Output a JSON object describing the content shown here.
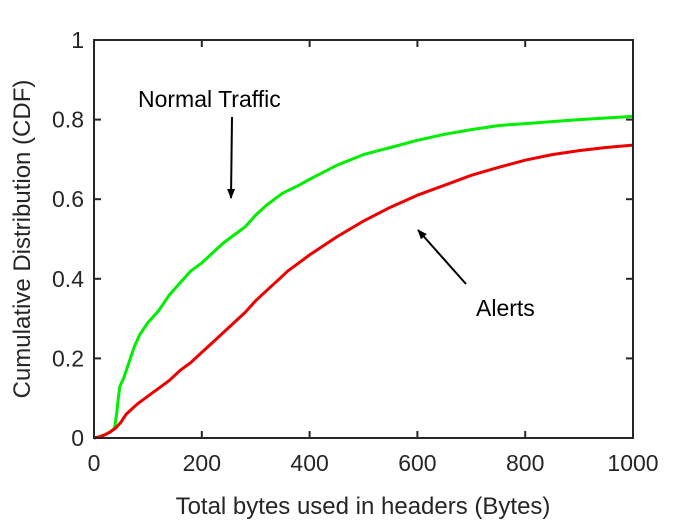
{
  "chart_data": {
    "type": "line",
    "title": "",
    "xlabel": "Total bytes used in headers (Bytes)",
    "ylabel": "Cumulative Distribution (CDF)",
    "xlim": [
      0,
      1000
    ],
    "ylim": [
      0,
      1
    ],
    "xticks": [
      "0",
      "200",
      "400",
      "600",
      "800",
      "1000"
    ],
    "yticks": [
      "0",
      "0.2",
      "0.4",
      "0.6",
      "0.8",
      "1"
    ],
    "grid": false,
    "series": [
      {
        "name": "Normal Traffic",
        "color": "#00ee00",
        "x": [
          0,
          10,
          20,
          30,
          38,
          42,
          45,
          48,
          55,
          65,
          75,
          85,
          100,
          120,
          140,
          160,
          180,
          200,
          220,
          240,
          260,
          280,
          300,
          320,
          350,
          380,
          400,
          450,
          500,
          550,
          600,
          650,
          700,
          750,
          800,
          850,
          900,
          950,
          1000
        ],
        "values": [
          0,
          0.003,
          0.008,
          0.015,
          0.025,
          0.06,
          0.1,
          0.13,
          0.15,
          0.19,
          0.23,
          0.26,
          0.29,
          0.32,
          0.36,
          0.39,
          0.42,
          0.44,
          0.465,
          0.49,
          0.51,
          0.53,
          0.56,
          0.585,
          0.615,
          0.635,
          0.65,
          0.685,
          0.712,
          0.73,
          0.748,
          0.763,
          0.775,
          0.785,
          0.79,
          0.795,
          0.8,
          0.804,
          0.808
        ]
      },
      {
        "name": "Alerts",
        "color": "#ee0000",
        "x": [
          0,
          10,
          20,
          30,
          40,
          50,
          60,
          80,
          100,
          120,
          140,
          160,
          180,
          200,
          220,
          240,
          260,
          280,
          300,
          320,
          340,
          360,
          380,
          400,
          450,
          500,
          550,
          600,
          650,
          700,
          750,
          800,
          850,
          900,
          950,
          1000
        ],
        "values": [
          0,
          0.003,
          0.008,
          0.015,
          0.025,
          0.04,
          0.06,
          0.085,
          0.105,
          0.125,
          0.145,
          0.17,
          0.19,
          0.215,
          0.24,
          0.265,
          0.29,
          0.315,
          0.345,
          0.37,
          0.395,
          0.42,
          0.44,
          0.46,
          0.505,
          0.545,
          0.58,
          0.61,
          0.635,
          0.66,
          0.68,
          0.698,
          0.712,
          0.722,
          0.73,
          0.736
        ]
      }
    ],
    "annotations": [
      {
        "text": "Normal Traffic",
        "target_series": "Normal Traffic"
      },
      {
        "text": "Alerts",
        "target_series": "Alerts"
      }
    ]
  }
}
